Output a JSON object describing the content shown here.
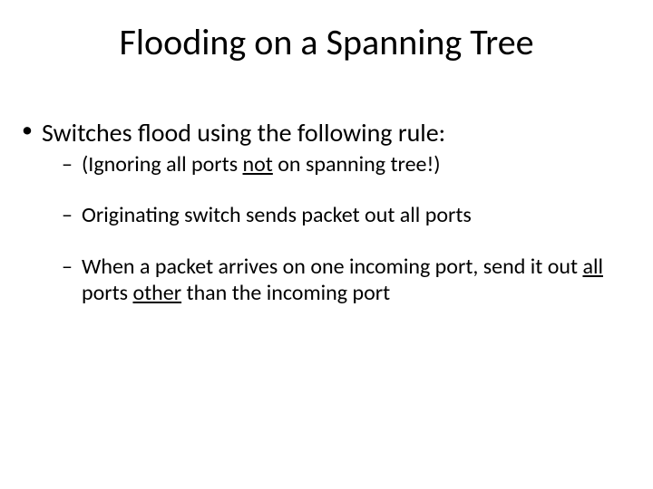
{
  "title": "Flooding on a Spanning Tree",
  "bullets": {
    "main": "Switches flood using the following rule:",
    "sub1_pre": "(Ignoring all ports ",
    "sub1_u": "not",
    "sub1_post": " on spanning tree!)",
    "sub2": "Originating switch sends packet out all ports",
    "sub3_a": "When a packet arrives on one incoming port, send it out ",
    "sub3_u1": "all",
    "sub3_b": " ports ",
    "sub3_u2": "other",
    "sub3_c": " than the incoming port"
  },
  "colors": {
    "background": "#ffffff",
    "text": "#000000"
  },
  "fonts": {
    "title_size_pt": 40,
    "body_size_pt": 28,
    "sub_size_pt": 24,
    "family": "Calibri"
  }
}
